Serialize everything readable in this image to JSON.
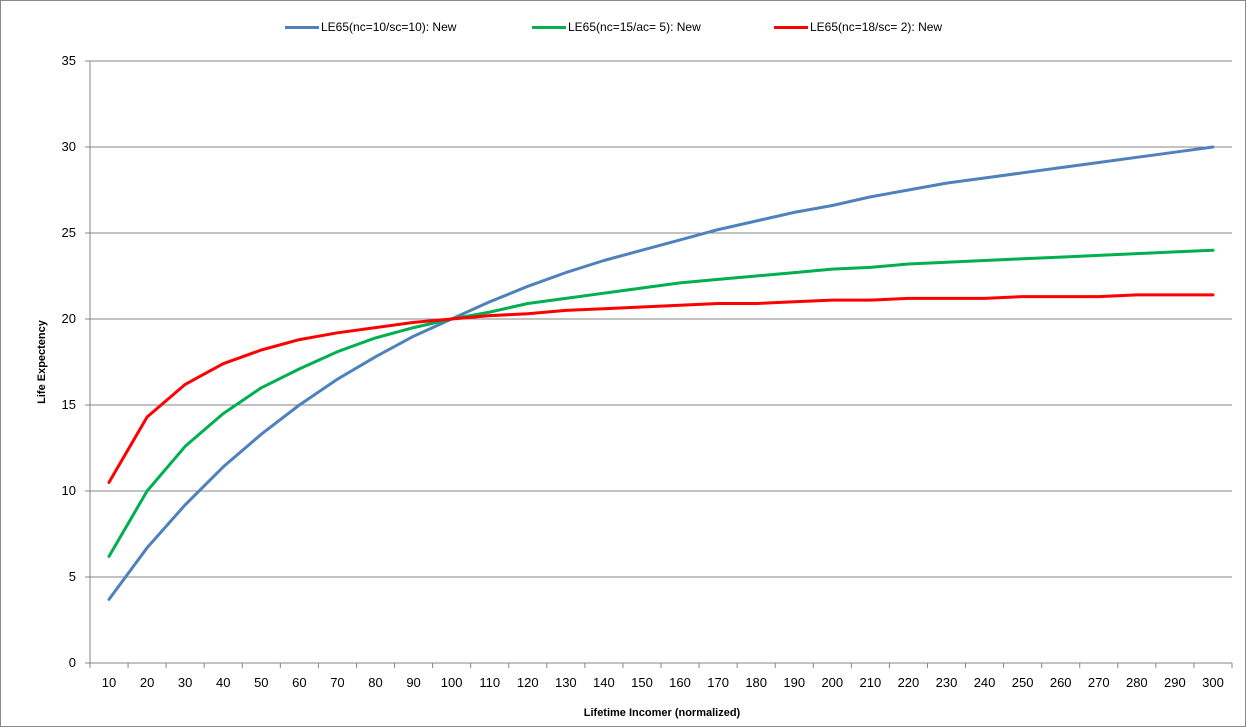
{
  "chart_data": {
    "type": "line",
    "title": "",
    "xlabel": "Lifetime Incomer (normalized)",
    "ylabel": "Life Expectency",
    "x": [
      10,
      20,
      30,
      40,
      50,
      60,
      70,
      80,
      90,
      100,
      110,
      120,
      130,
      140,
      150,
      160,
      170,
      180,
      190,
      200,
      210,
      220,
      230,
      240,
      250,
      260,
      270,
      280,
      290,
      300
    ],
    "ylim": [
      0,
      35
    ],
    "yticks": [
      0,
      5,
      10,
      15,
      20,
      25,
      30,
      35
    ],
    "grid": true,
    "legend_position": "top",
    "series": [
      {
        "name": "LE65(nc=10/sc=10): New",
        "color": "#4f81bd",
        "values": [
          3.7,
          6.7,
          9.2,
          11.4,
          13.3,
          15.0,
          16.5,
          17.8,
          19.0,
          20.0,
          21.0,
          21.9,
          22.7,
          23.4,
          24.0,
          24.6,
          25.2,
          25.7,
          26.2,
          26.6,
          27.1,
          27.5,
          27.9,
          28.2,
          28.5,
          28.8,
          29.1,
          29.4,
          29.7,
          30.0
        ]
      },
      {
        "name": "LE65(nc=15/ac= 5): New",
        "color": "#00b050",
        "values": [
          6.2,
          10.0,
          12.6,
          14.5,
          16.0,
          17.1,
          18.1,
          18.9,
          19.5,
          20.0,
          20.4,
          20.9,
          21.2,
          21.5,
          21.8,
          22.1,
          22.3,
          22.5,
          22.7,
          22.9,
          23.0,
          23.2,
          23.3,
          23.4,
          23.5,
          23.6,
          23.7,
          23.8,
          23.9,
          24.0
        ]
      },
      {
        "name": "LE65(nc=18/sc= 2): New",
        "color": "#ff0000",
        "values": [
          10.5,
          14.3,
          16.2,
          17.4,
          18.2,
          18.8,
          19.2,
          19.5,
          19.8,
          20.0,
          20.2,
          20.3,
          20.5,
          20.6,
          20.7,
          20.8,
          20.9,
          20.9,
          21.0,
          21.1,
          21.1,
          21.2,
          21.2,
          21.2,
          21.3,
          21.3,
          21.3,
          21.4,
          21.4,
          21.4
        ]
      }
    ]
  }
}
